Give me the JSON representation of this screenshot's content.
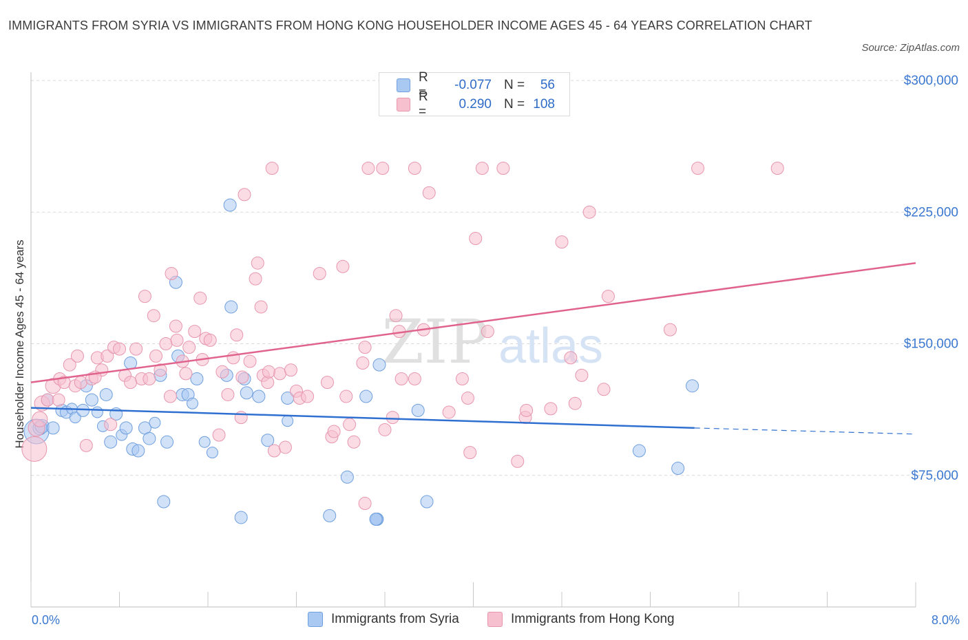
{
  "title": "IMMIGRANTS FROM SYRIA VS IMMIGRANTS FROM HONG KONG HOUSEHOLDER INCOME AGES 45 - 64 YEARS CORRELATION CHART",
  "source": "Source: ZipAtlas.com",
  "watermark": {
    "zip": "ZIP",
    "atlas": "atlas"
  },
  "legend": {
    "rows": [
      {
        "r_label": "R =",
        "r_value": "-0.077",
        "n_label": "N =",
        "n_value": "56",
        "color": "#a9c8f2",
        "border": "#6f9fde"
      },
      {
        "r_label": "R =",
        "r_value": "0.290",
        "n_label": "N =",
        "n_value": "108",
        "color": "#f7c0cf",
        "border": "#e796ae"
      }
    ]
  },
  "bottom_legend": [
    "Immigrants from Syria",
    "Immigrants from Hong Kong"
  ],
  "x_axis_labels": {
    "min": "0.0%",
    "max": "8.0%"
  },
  "chart_data": {
    "type": "scatter",
    "title": "IMMIGRANTS FROM SYRIA VS IMMIGRANTS FROM HONG KONG HOUSEHOLDER INCOME AGES 45 - 64 YEARS CORRELATION CHART",
    "xlabel": "",
    "ylabel": "Householder Income Ages 45 - 64 years",
    "xlim": [
      0,
      8
    ],
    "ylim": [
      0,
      300000
    ],
    "x_unit": "%",
    "y_ticks": [
      {
        "value": 75000,
        "label": "$75,000"
      },
      {
        "value": 150000,
        "label": "$150,000"
      },
      {
        "value": 225000,
        "label": "$225,000"
      },
      {
        "value": 300000,
        "label": "$300,000"
      }
    ],
    "grid": true,
    "legend_position": "top-center",
    "series": [
      {
        "name": "Immigrants from Syria",
        "color": "#a9c8f2",
        "stroke": "#6f9fde",
        "line_color": "#2f6fd0",
        "trend": {
          "x0": 0.0,
          "y0": 113500,
          "x1": 6.0,
          "y1": 102000,
          "dash_to_x": 8.0,
          "dash_to_y": 98500
        },
        "points": [
          [
            0.05,
            100000,
            18
          ],
          [
            0.08,
            102000,
            10
          ],
          [
            0.1,
            103000,
            10
          ],
          [
            0.15,
            118000,
            9
          ],
          [
            0.2,
            102000,
            9
          ],
          [
            0.28,
            112000,
            9
          ],
          [
            0.32,
            111000,
            9
          ],
          [
            0.37,
            113000,
            8
          ],
          [
            0.4,
            108000,
            8
          ],
          [
            0.47,
            112000,
            9
          ],
          [
            0.5,
            126000,
            9
          ],
          [
            0.55,
            118000,
            9
          ],
          [
            0.6,
            111000,
            8
          ],
          [
            0.65,
            103000,
            8
          ],
          [
            0.68,
            121000,
            9
          ],
          [
            0.72,
            94000,
            9
          ],
          [
            0.77,
            110000,
            9
          ],
          [
            0.82,
            98000,
            8
          ],
          [
            0.86,
            102000,
            9
          ],
          [
            0.9,
            139000,
            9
          ],
          [
            0.92,
            90000,
            9
          ],
          [
            0.97,
            89000,
            9
          ],
          [
            1.03,
            102000,
            9
          ],
          [
            1.07,
            96000,
            9
          ],
          [
            1.12,
            105000,
            8
          ],
          [
            1.17,
            132000,
            9
          ],
          [
            1.2,
            60000,
            9
          ],
          [
            1.23,
            94000,
            9
          ],
          [
            1.31,
            185000,
            9
          ],
          [
            1.33,
            143000,
            9
          ],
          [
            1.37,
            121000,
            9
          ],
          [
            1.42,
            121000,
            9
          ],
          [
            1.46,
            116000,
            8
          ],
          [
            1.5,
            130000,
            9
          ],
          [
            1.57,
            94000,
            8
          ],
          [
            1.64,
            88000,
            8
          ],
          [
            1.8,
            229000,
            9
          ],
          [
            1.81,
            171000,
            9
          ],
          [
            1.77,
            132000,
            9
          ],
          [
            1.93,
            130000,
            9
          ],
          [
            1.95,
            122000,
            9
          ],
          [
            2.06,
            120000,
            9
          ],
          [
            2.14,
            95000,
            9
          ],
          [
            2.32,
            119000,
            9
          ],
          [
            2.32,
            106000,
            8
          ],
          [
            2.7,
            52000,
            9
          ],
          [
            2.86,
            74000,
            9
          ],
          [
            3.03,
            120000,
            9
          ],
          [
            3.15,
            138000,
            9
          ],
          [
            3.13,
            50000,
            9
          ],
          [
            3.13,
            50000,
            9
          ],
          [
            3.12,
            50000,
            9
          ],
          [
            3.12,
            50000,
            9
          ],
          [
            3.5,
            112000,
            9
          ],
          [
            3.58,
            60000,
            9
          ],
          [
            5.5,
            89000,
            9
          ],
          [
            5.85,
            79000,
            9
          ],
          [
            5.98,
            126000,
            9
          ],
          [
            1.9,
            51000,
            9
          ]
        ]
      },
      {
        "name": "Immigrants from Hong Kong",
        "color": "#f7c0cf",
        "stroke": "#e796ae",
        "line_color": "#e0638e",
        "trend": {
          "x0": 0.0,
          "y0": 128000,
          "x1": 8.0,
          "y1": 196000
        },
        "points": [
          [
            0.03,
            90000,
            18
          ],
          [
            0.05,
            102000,
            12
          ],
          [
            0.08,
            107000,
            11
          ],
          [
            0.1,
            116000,
            11
          ],
          [
            0.15,
            118000,
            9
          ],
          [
            0.2,
            126000,
            11
          ],
          [
            0.26,
            130000,
            9
          ],
          [
            0.3,
            128000,
            9
          ],
          [
            0.35,
            138000,
            9
          ],
          [
            0.4,
            126000,
            9
          ],
          [
            0.45,
            128000,
            9
          ],
          [
            0.5,
            92000,
            9
          ],
          [
            0.55,
            130000,
            9
          ],
          [
            0.6,
            142000,
            9
          ],
          [
            0.64,
            135000,
            9
          ],
          [
            0.69,
            143000,
            9
          ],
          [
            0.75,
            148000,
            9
          ],
          [
            0.8,
            147000,
            9
          ],
          [
            0.85,
            132000,
            9
          ],
          [
            0.9,
            128000,
            9
          ],
          [
            0.95,
            147000,
            9
          ],
          [
            1.0,
            130000,
            9
          ],
          [
            1.03,
            177000,
            9
          ],
          [
            1.07,
            130000,
            9
          ],
          [
            1.11,
            166000,
            9
          ],
          [
            1.13,
            143000,
            9
          ],
          [
            1.17,
            135000,
            9
          ],
          [
            1.22,
            150000,
            9
          ],
          [
            1.27,
            190000,
            9
          ],
          [
            1.31,
            160000,
            9
          ],
          [
            1.32,
            152000,
            9
          ],
          [
            1.37,
            140000,
            9
          ],
          [
            1.4,
            133000,
            9
          ],
          [
            1.43,
            148000,
            9
          ],
          [
            1.48,
            157000,
            9
          ],
          [
            1.53,
            176000,
            9
          ],
          [
            1.55,
            141000,
            9
          ],
          [
            1.58,
            153000,
            9
          ],
          [
            1.62,
            152000,
            9
          ],
          [
            1.7,
            98000,
            9
          ],
          [
            1.73,
            134000,
            9
          ],
          [
            1.78,
            121000,
            9
          ],
          [
            1.83,
            142000,
            9
          ],
          [
            1.86,
            155000,
            9
          ],
          [
            1.9,
            108000,
            9
          ],
          [
            1.93,
            235000,
            9
          ],
          [
            1.98,
            140000,
            9
          ],
          [
            2.03,
            187000,
            9
          ],
          [
            2.05,
            196000,
            9
          ],
          [
            2.08,
            171000,
            9
          ],
          [
            2.1,
            132000,
            9
          ],
          [
            2.14,
            128000,
            9
          ],
          [
            2.18,
            250000,
            9
          ],
          [
            2.2,
            89000,
            9
          ],
          [
            2.25,
            133000,
            9
          ],
          [
            2.3,
            91000,
            9
          ],
          [
            2.35,
            135000,
            9
          ],
          [
            2.4,
            123000,
            9
          ],
          [
            2.43,
            119000,
            9
          ],
          [
            2.5,
            120000,
            9
          ],
          [
            2.61,
            190000,
            9
          ],
          [
            2.68,
            128000,
            9
          ],
          [
            2.72,
            97000,
            9
          ],
          [
            2.74,
            100000,
            9
          ],
          [
            2.82,
            194000,
            9
          ],
          [
            2.85,
            120000,
            9
          ],
          [
            2.88,
            104000,
            9
          ],
          [
            2.92,
            94000,
            9
          ],
          [
            3.0,
            139000,
            9
          ],
          [
            3.02,
            148000,
            9
          ],
          [
            3.05,
            250000,
            9
          ],
          [
            3.18,
            250000,
            9
          ],
          [
            3.2,
            101000,
            9
          ],
          [
            3.27,
            108000,
            9
          ],
          [
            3.3,
            166000,
            9
          ],
          [
            3.33,
            157000,
            9
          ],
          [
            3.35,
            130000,
            9
          ],
          [
            3.47,
            250000,
            9
          ],
          [
            3.47,
            130000,
            9
          ],
          [
            3.55,
            158000,
            9
          ],
          [
            3.6,
            236000,
            9
          ],
          [
            3.78,
            111000,
            9
          ],
          [
            3.9,
            130000,
            9
          ],
          [
            3.95,
            119000,
            9
          ],
          [
            3.97,
            88000,
            9
          ],
          [
            4.02,
            210000,
            9
          ],
          [
            4.08,
            250000,
            9
          ],
          [
            4.13,
            157000,
            9
          ],
          [
            4.27,
            250000,
            9
          ],
          [
            4.4,
            83000,
            9
          ],
          [
            4.47,
            108000,
            9
          ],
          [
            4.48,
            112000,
            9
          ],
          [
            4.7,
            113000,
            9
          ],
          [
            4.8,
            208000,
            9
          ],
          [
            4.88,
            142000,
            9
          ],
          [
            4.92,
            116000,
            9
          ],
          [
            4.98,
            132000,
            9
          ],
          [
            5.05,
            225000,
            9
          ],
          [
            5.18,
            124000,
            9
          ],
          [
            5.22,
            177000,
            9
          ],
          [
            5.78,
            158000,
            9
          ],
          [
            6.03,
            250000,
            9
          ],
          [
            6.75,
            250000,
            9
          ],
          [
            0.25,
            118000,
            9
          ],
          [
            0.42,
            143000,
            9
          ],
          [
            0.58,
            131000,
            9
          ],
          [
            0.72,
            104000,
            9
          ],
          [
            1.26,
            120000,
            9
          ],
          [
            1.91,
            131000,
            9
          ],
          [
            2.15,
            134000,
            9
          ],
          [
            3.02,
            59000,
            9
          ]
        ]
      }
    ]
  }
}
